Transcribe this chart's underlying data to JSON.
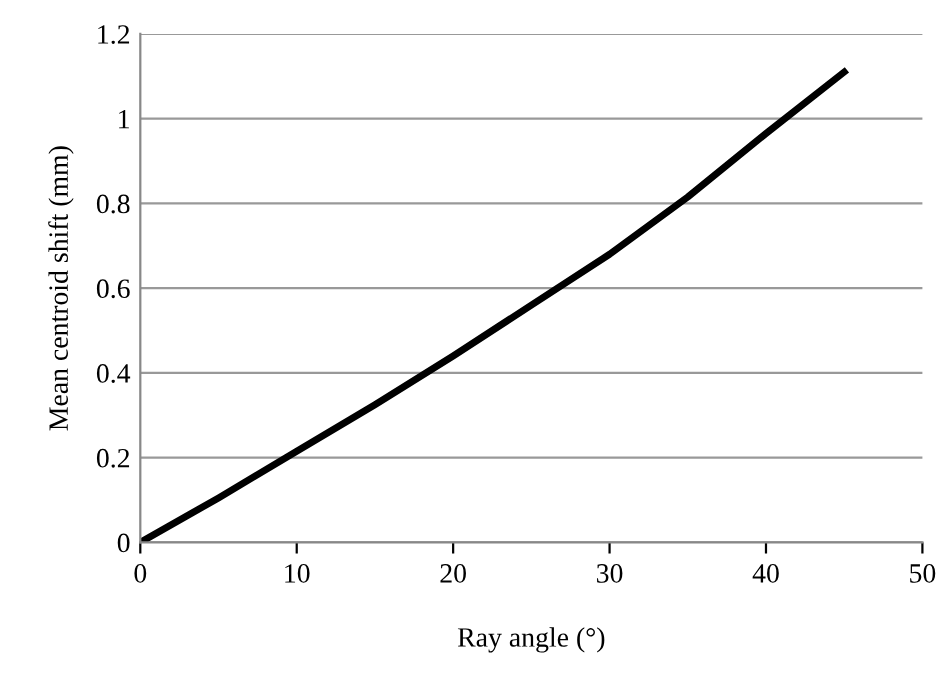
{
  "chart_data": {
    "type": "line",
    "xlabel": "Ray angle (°)",
    "ylabel": "Mean centroid shift (mm)",
    "x": [
      0,
      5,
      10,
      15,
      20,
      25,
      30,
      35,
      40,
      45
    ],
    "series": [
      {
        "color": "#000000",
        "values": [
          0,
          0.105,
          0.215,
          0.325,
          0.44,
          0.56,
          0.68,
          0.815,
          0.965,
          1.11
        ]
      }
    ],
    "xlim": [
      0,
      50
    ],
    "xticks": [
      0,
      10,
      20,
      30,
      40,
      50
    ],
    "ylim": [
      0,
      1.2
    ],
    "yticks": [
      0,
      0.2,
      0.4,
      0.6,
      0.8,
      1,
      1.2
    ],
    "grid": "y",
    "marker": "none",
    "line_style": "solid"
  }
}
